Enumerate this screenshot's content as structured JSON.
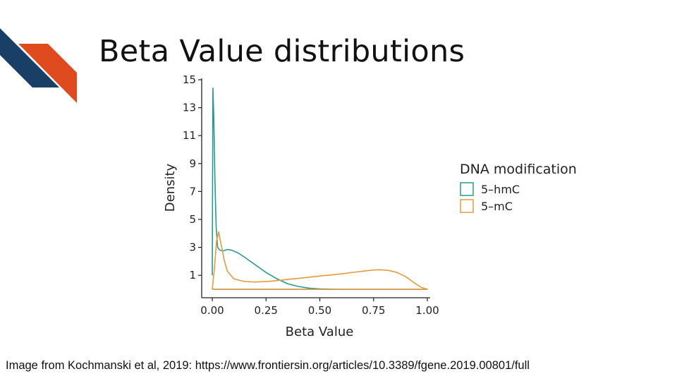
{
  "slide": {
    "title": "Beta Value distributions",
    "caption": "Image from Kochmanski et al, 2019: https://www.frontiersin.org/articles/10.3389/fgene.2019.00801/full"
  },
  "colors": {
    "logo_navy": "#1a3f66",
    "logo_orange": "#e04a1f",
    "hmc": "#2a9994",
    "mc": "#e89a3c",
    "axis": "#222222"
  },
  "chart_data": {
    "type": "line",
    "xlabel": "Beta Value",
    "ylabel": "Density",
    "xlim": [
      0,
      1
    ],
    "ylim": [
      0,
      15
    ],
    "x_ticks": [
      0.0,
      0.25,
      0.5,
      0.75,
      1.0
    ],
    "x_tick_labels": [
      "0.00",
      "0.25",
      "0.50",
      "0.75",
      "1.00"
    ],
    "y_ticks": [
      1,
      3,
      5,
      7,
      9,
      11,
      13,
      15
    ],
    "y_tick_labels": [
      "1",
      "3",
      "5",
      "7",
      "9",
      "11",
      "13",
      "15"
    ],
    "grid": false,
    "legend": {
      "title": "DNA modification",
      "position": "right"
    },
    "series": [
      {
        "name": "5–hmC",
        "color": "#2a9994",
        "x": [
          0.0,
          0.003,
          0.007,
          0.012,
          0.018,
          0.025,
          0.035,
          0.05,
          0.07,
          0.09,
          0.12,
          0.15,
          0.2,
          0.25,
          0.3,
          0.35,
          0.4,
          0.45,
          0.5,
          0.55,
          0.6,
          0.65,
          0.7,
          0.8,
          0.9,
          1.0
        ],
        "y": [
          1.0,
          14.4,
          12.5,
          8.0,
          4.5,
          3.0,
          2.8,
          2.75,
          2.85,
          2.8,
          2.6,
          2.3,
          1.75,
          1.2,
          0.75,
          0.4,
          0.2,
          0.08,
          0.03,
          0.01,
          0.0,
          0.0,
          0.0,
          0.0,
          0.0,
          0.0
        ]
      },
      {
        "name": "5–mC",
        "color": "#e89a3c",
        "x": [
          0.0,
          0.01,
          0.02,
          0.03,
          0.04,
          0.055,
          0.07,
          0.1,
          0.15,
          0.2,
          0.25,
          0.3,
          0.35,
          0.4,
          0.5,
          0.6,
          0.7,
          0.75,
          0.78,
          0.82,
          0.86,
          0.9,
          0.94,
          0.97,
          1.0
        ],
        "y": [
          0.0,
          1.5,
          3.5,
          4.1,
          3.3,
          2.1,
          1.3,
          0.75,
          0.55,
          0.52,
          0.55,
          0.62,
          0.7,
          0.78,
          0.95,
          1.1,
          1.3,
          1.38,
          1.4,
          1.35,
          1.2,
          0.9,
          0.45,
          0.15,
          0.0
        ]
      }
    ]
  }
}
